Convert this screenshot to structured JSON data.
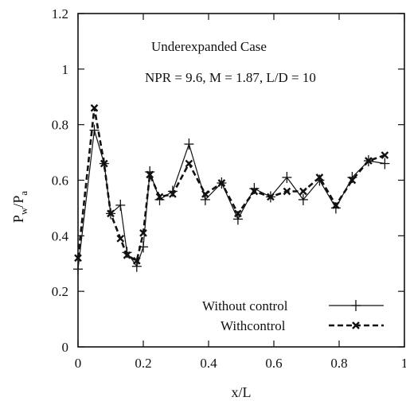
{
  "chart_data": {
    "type": "line",
    "annotations": [
      "Underexpanded Case",
      "NPR = 9.6, M = 1.87, L/D = 10"
    ],
    "xlabel": "x/L",
    "ylabel": {
      "main": "P",
      "sub1": "w",
      "sep": "/P",
      "sub2": "a"
    },
    "xlim": [
      0,
      1
    ],
    "ylim": [
      0,
      1.2
    ],
    "xticks": [
      0,
      0.2,
      0.4,
      0.6,
      0.8,
      1
    ],
    "xtick_labels": [
      "0",
      "0.2",
      "0.4",
      "0.6",
      "0.8",
      "1"
    ],
    "yticks": [
      0,
      0.2,
      0.4,
      0.6,
      0.8,
      1,
      1.2
    ],
    "ytick_labels": [
      "0",
      "0.2",
      "0.4",
      "0.6",
      "0.8",
      "1",
      "1.2"
    ],
    "grid": false,
    "legend_position": "bottom-right",
    "series": [
      {
        "name": "Without control",
        "style": "solid",
        "marker": "plus",
        "x": [
          0.0,
          0.05,
          0.08,
          0.1,
          0.13,
          0.15,
          0.18,
          0.2,
          0.22,
          0.25,
          0.29,
          0.34,
          0.39,
          0.44,
          0.49,
          0.54,
          0.59,
          0.64,
          0.69,
          0.74,
          0.79,
          0.84,
          0.89,
          0.94
        ],
        "y": [
          0.28,
          0.78,
          0.66,
          0.48,
          0.51,
          0.34,
          0.29,
          0.36,
          0.63,
          0.53,
          0.56,
          0.73,
          0.53,
          0.59,
          0.46,
          0.57,
          0.54,
          0.61,
          0.53,
          0.6,
          0.5,
          0.61,
          0.67,
          0.66
        ]
      },
      {
        "name": "Withcontrol",
        "style": "dashed",
        "marker": "cross",
        "x": [
          0.0,
          0.05,
          0.08,
          0.1,
          0.13,
          0.15,
          0.18,
          0.2,
          0.22,
          0.25,
          0.29,
          0.34,
          0.39,
          0.44,
          0.49,
          0.54,
          0.59,
          0.64,
          0.69,
          0.74,
          0.79,
          0.84,
          0.89,
          0.94
        ],
        "y": [
          0.32,
          0.86,
          0.66,
          0.48,
          0.39,
          0.33,
          0.31,
          0.41,
          0.62,
          0.54,
          0.55,
          0.66,
          0.55,
          0.59,
          0.48,
          0.56,
          0.54,
          0.56,
          0.56,
          0.61,
          0.51,
          0.6,
          0.67,
          0.69
        ]
      }
    ]
  }
}
